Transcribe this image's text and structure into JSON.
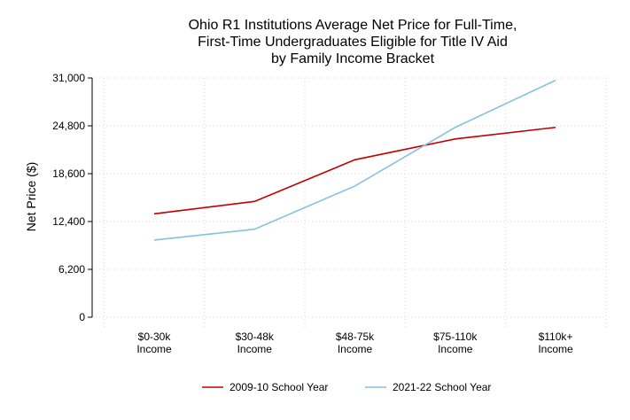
{
  "chart_data": {
    "type": "line",
    "title": [
      "Ohio R1 Institutions Average Net Price for Full-Time,",
      "First-Time Undergraduates Eligible for Title IV Aid",
      "by Family Income Bracket"
    ],
    "ylabel": "Net Price ($)",
    "xlabel": "",
    "categories": [
      [
        "$0-30k",
        "Income"
      ],
      [
        "$30-48k",
        "Income"
      ],
      [
        "$48-75k",
        "Income"
      ],
      [
        "$75-110k",
        "Income"
      ],
      [
        "$110k+",
        "Income"
      ]
    ],
    "yticks": [
      0,
      6200,
      12400,
      18600,
      24800,
      31000
    ],
    "ytick_labels": [
      "0",
      "6,200",
      "12,400",
      "18,600",
      "24,800",
      "31,000"
    ],
    "ylim": [
      0,
      31000
    ],
    "grid": true,
    "legend_position": "bottom",
    "series": [
      {
        "name": "2009-10 School Year",
        "color": "#c00000",
        "values": [
          13400,
          15000,
          20400,
          23100,
          24600
        ]
      },
      {
        "name": "2021-22 School Year",
        "color": "#88c0e0",
        "values": [
          10000,
          11400,
          17000,
          24600,
          30700
        ]
      }
    ]
  }
}
